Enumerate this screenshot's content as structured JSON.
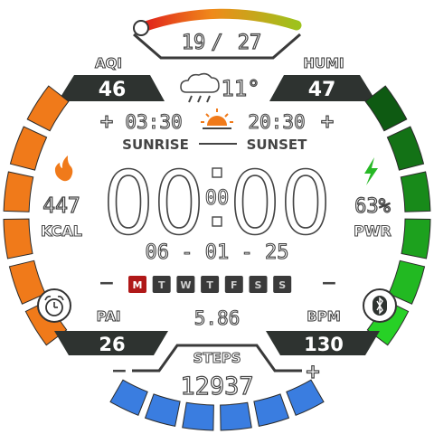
{
  "temperature_range": {
    "low": "19",
    "separator": "/",
    "high": "27"
  },
  "aqi": {
    "label": "AQI",
    "value": "46"
  },
  "humidity": {
    "label": "HUMI",
    "value": "47"
  },
  "weather": {
    "icon": "cloud-rain-sun-icon",
    "temperature": "11°"
  },
  "sun": {
    "sunrise_time": "03:30",
    "sunset_time": "20:30",
    "sunrise_label": "SUNRISE",
    "sunset_label": "SUNSET",
    "icon": "sunrise-icon"
  },
  "calories": {
    "value": "447",
    "unit": "KCAL",
    "icon": "flame-icon",
    "minus": "−",
    "plus": "+"
  },
  "battery": {
    "value": "63%",
    "unit": "PWR",
    "icon": "lightning-icon",
    "minus": "−",
    "plus": "+"
  },
  "time": {
    "hours": "00",
    "minutes": "00",
    "seconds": "00"
  },
  "date": "06 - 01 - 25",
  "weekdays": {
    "days": [
      "M",
      "T",
      "W",
      "T",
      "F",
      "S",
      "S"
    ],
    "active_index": 0
  },
  "pai": {
    "label": "PAI",
    "value": "26"
  },
  "bpm": {
    "label": "BPM",
    "value": "130"
  },
  "distance": "5.86",
  "steps": {
    "label": "STEPS",
    "value": "12937",
    "minus": "−",
    "plus": "+"
  },
  "icons": {
    "alarm": "alarm-clock-icon",
    "bluetooth": "bluetooth-icon"
  },
  "colors": {
    "calories_arc": "#f07a1a",
    "battery_arc_dark": "#0e5a12",
    "battery_arc_light": "#27d126",
    "steps_arc": "#3a7de0",
    "active_day": "#b01818",
    "panel_dark": "#2e3330"
  }
}
